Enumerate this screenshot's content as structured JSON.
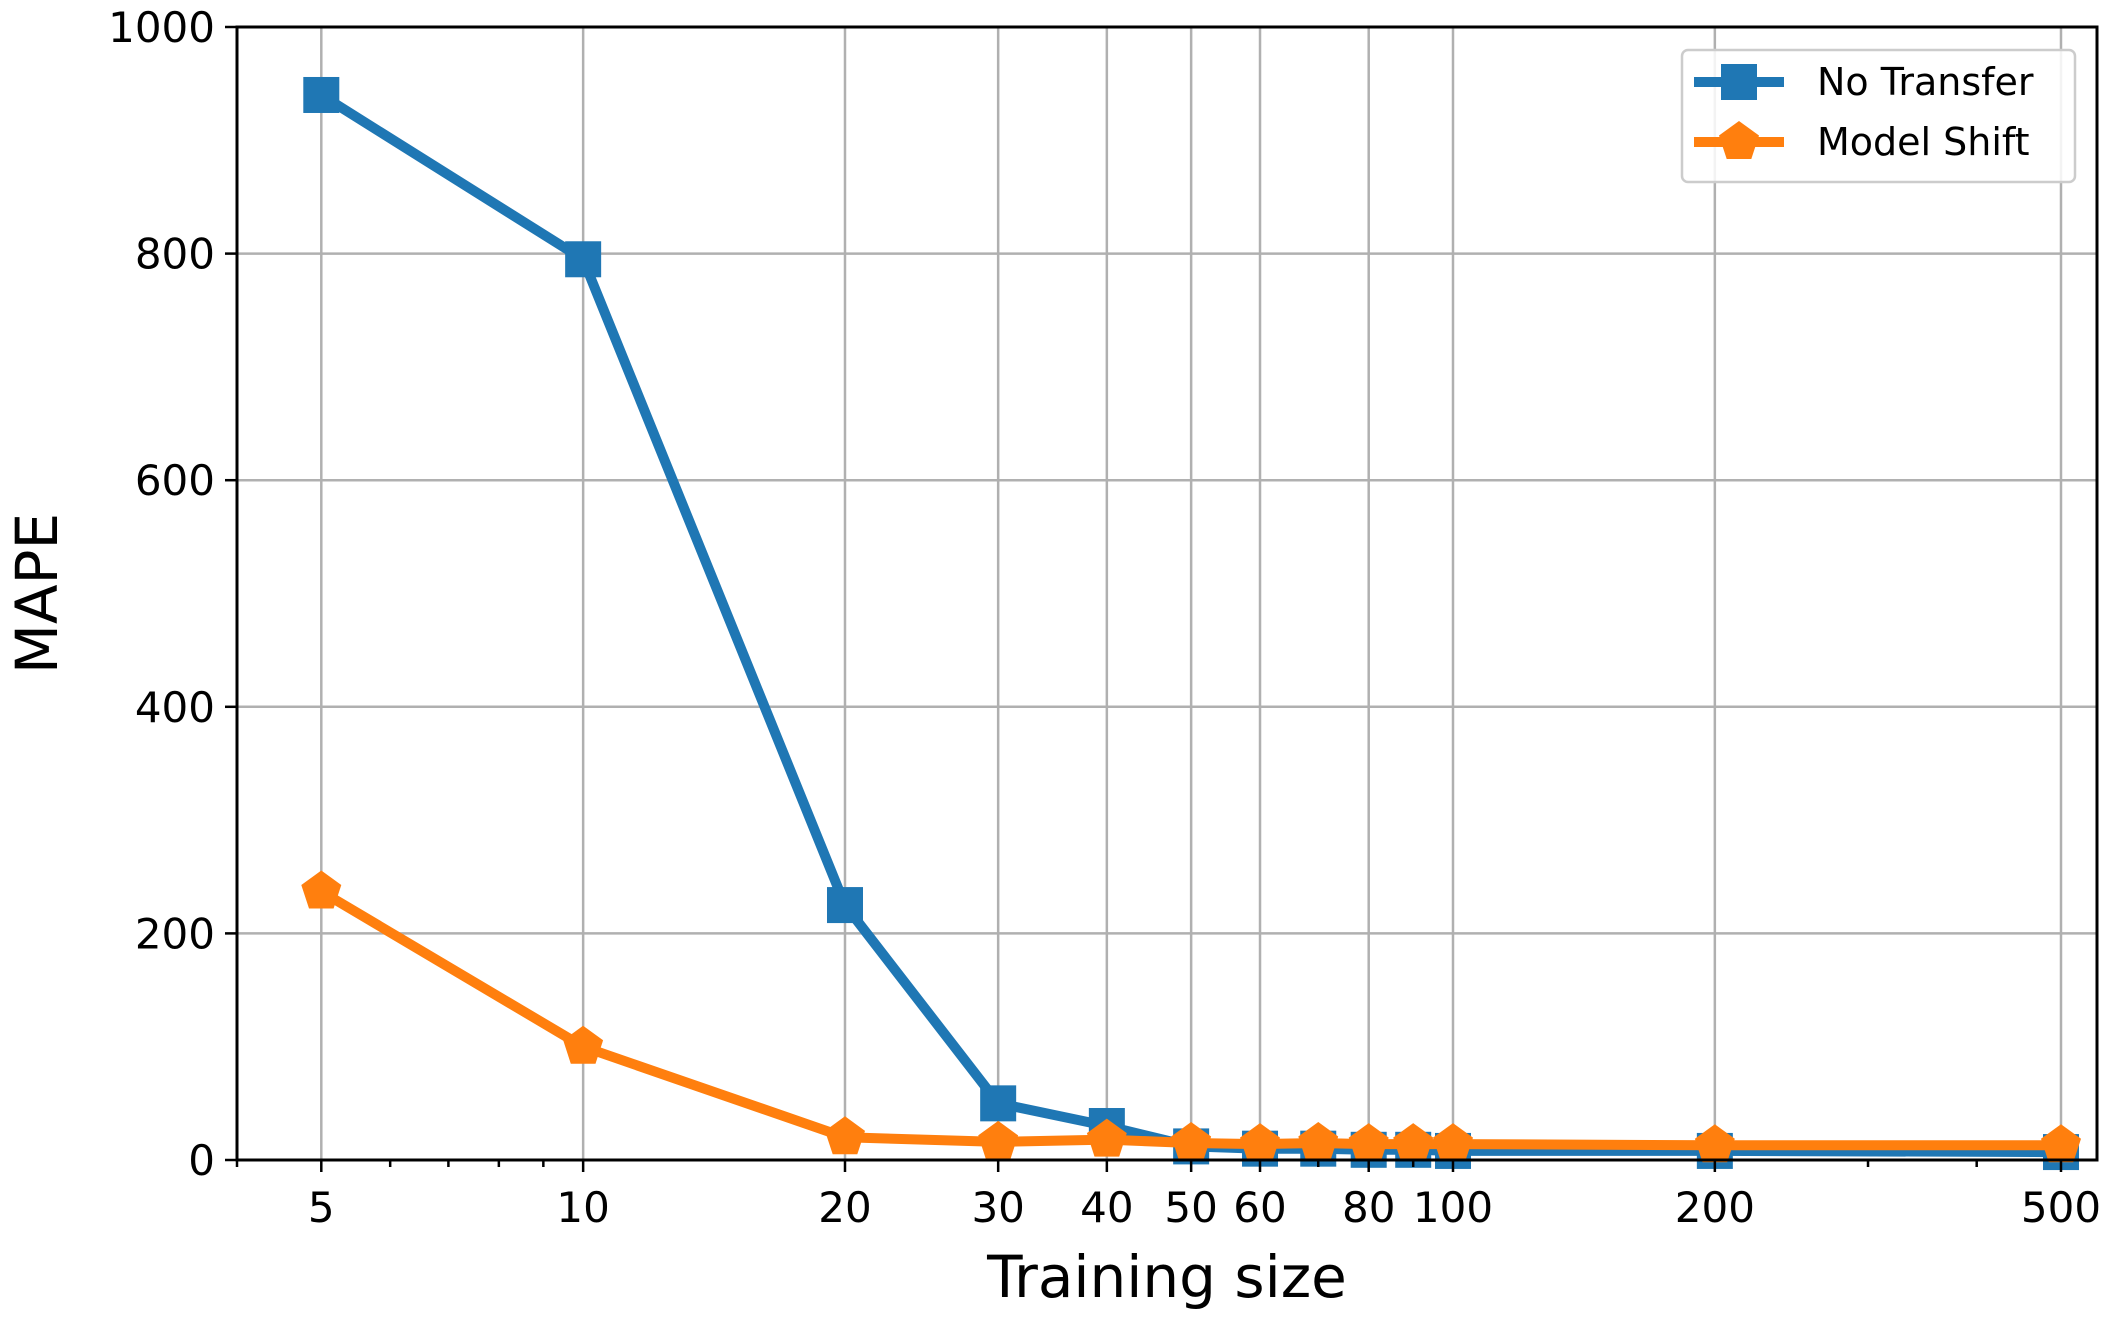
{
  "chart_data": {
    "type": "line",
    "xscale": "log",
    "x": [
      5,
      10,
      20,
      30,
      40,
      50,
      60,
      70,
      80,
      90,
      100,
      200,
      500
    ],
    "xlim": [
      4,
      550
    ],
    "ylim": [
      0,
      1000
    ],
    "xticks": [
      5,
      10,
      20,
      30,
      40,
      50,
      60,
      80,
      100,
      200,
      500
    ],
    "xtick_labels": [
      "5",
      "10",
      "20",
      "30",
      "40",
      "50",
      "60",
      "80",
      "100",
      "200",
      "500"
    ],
    "yticks": [
      0,
      200,
      400,
      600,
      800,
      1000
    ],
    "ytick_labels": [
      "0",
      "200",
      "400",
      "600",
      "800",
      "1000"
    ],
    "xlabel": "Training size",
    "ylabel": "MAPE",
    "grid": true,
    "legend_position": "top-right",
    "series": [
      {
        "name": "No Transfer",
        "color": "#1f77b4",
        "marker": "square",
        "values": [
          940,
          795,
          225,
          50,
          30,
          12,
          10,
          10,
          9,
          9,
          8,
          8,
          7
        ]
      },
      {
        "name": "Model Shift",
        "color": "#ff7f0e",
        "marker": "pentagon",
        "values": [
          237,
          100,
          20,
          16,
          18,
          15,
          14,
          15,
          14,
          14,
          14,
          13,
          13
        ]
      }
    ]
  }
}
